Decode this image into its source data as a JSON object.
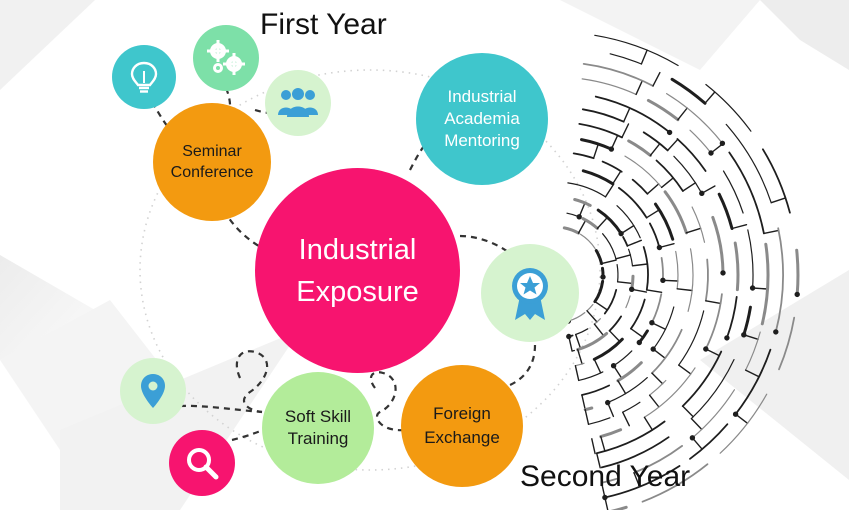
{
  "headings": {
    "first_year": "First Year",
    "second_year": "Second Year"
  },
  "center": {
    "line1": "Industrial",
    "line2": "Exposure",
    "color": "#f7146f"
  },
  "nodes": {
    "seminar": {
      "line1": "Seminar",
      "line2": "Conference",
      "color": "#f39a10"
    },
    "mentoring": {
      "line1": "Industrial",
      "line2": "Academia",
      "line3": "Mentoring",
      "color": "#3fc6cc"
    },
    "softskill": {
      "line1": "Soft Skill",
      "line2": "Training",
      "color": "#b3ec9a"
    },
    "foreign": {
      "line1": "Foreign",
      "line2": "Exchange",
      "color": "#f39a10"
    }
  },
  "icons": {
    "lightbulb": {
      "name": "lightbulb-icon",
      "color": "#3fc6cc"
    },
    "gears": {
      "name": "gears-icon",
      "color": "#7de0a8"
    },
    "people": {
      "name": "people-icon",
      "color": "#d6f3cf"
    },
    "award": {
      "name": "award-icon",
      "color": "#d6f3cf"
    },
    "pin": {
      "name": "location-pin-icon",
      "color": "#d6f3cf"
    },
    "search": {
      "name": "search-icon",
      "color": "#f7146f"
    }
  }
}
